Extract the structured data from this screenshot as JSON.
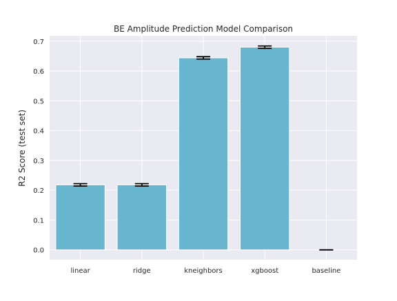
{
  "chart_data": {
    "type": "bar",
    "title": "BE Amplitude Prediction Model Comparison",
    "xlabel": "",
    "ylabel": "R2 Score (test set)",
    "categories": [
      "linear",
      "ridge",
      "kneighbors",
      "xgboost",
      "baseline"
    ],
    "values": [
      0.218,
      0.218,
      0.644,
      0.68,
      0.0
    ],
    "error": [
      0.004,
      0.004,
      0.004,
      0.004,
      0.0
    ],
    "ylim": [
      -0.033,
      0.718
    ],
    "yticks": [
      0.0,
      0.1,
      0.2,
      0.3,
      0.4,
      0.5,
      0.6,
      0.7
    ],
    "ytick_labels": [
      "0.0",
      "0.1",
      "0.2",
      "0.3",
      "0.4",
      "0.5",
      "0.6",
      "0.7"
    ],
    "grid": true,
    "colors": {
      "bar": "#67b5cf",
      "axes_bg": "#eaeaf2",
      "grid": "#ffffff",
      "errorbar": "#000000"
    }
  }
}
